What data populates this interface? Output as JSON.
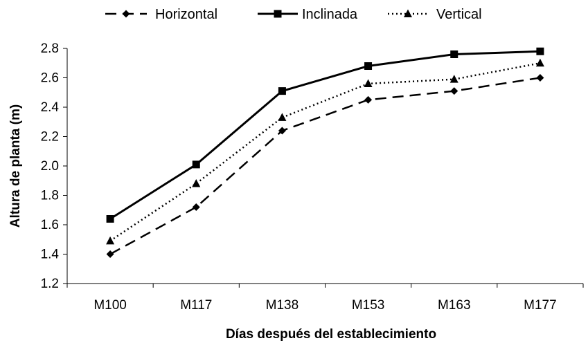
{
  "chart_data": {
    "type": "line",
    "title": "",
    "xlabel": "Días después del establecimiento",
    "ylabel": "Altura de planta (m)",
    "categories": [
      "M100",
      "M117",
      "M138",
      "M153",
      "M163",
      "M177"
    ],
    "ylim": [
      1.2,
      2.8
    ],
    "yticks": [
      "1.2",
      "1.4",
      "1.6",
      "1.8",
      "2.0",
      "2.2",
      "2.4",
      "2.6",
      "2.8"
    ],
    "grid": false,
    "legend_position": "top",
    "series": [
      {
        "name": "Horizontal",
        "marker": "diamond",
        "line": "dashed",
        "color": "#000000",
        "values": [
          1.4,
          1.72,
          2.24,
          2.45,
          2.51,
          2.6
        ]
      },
      {
        "name": "Inclinada",
        "marker": "square",
        "line": "solid",
        "color": "#000000",
        "values": [
          1.64,
          2.01,
          2.51,
          2.68,
          2.76,
          2.78
        ]
      },
      {
        "name": "Vertical",
        "marker": "triangle",
        "line": "dotted",
        "color": "#000000",
        "values": [
          1.49,
          1.88,
          2.33,
          2.56,
          2.59,
          2.7
        ]
      }
    ]
  }
}
